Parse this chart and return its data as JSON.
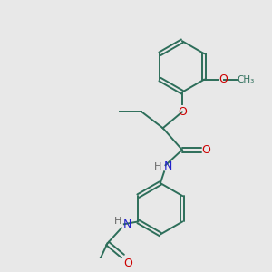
{
  "background_color": "#e8e8e8",
  "bond_color": "#2d6e5a",
  "atom_colors": {
    "O": "#cc0000",
    "N": "#2222cc",
    "H": "#666666",
    "C": "#2d6e5a"
  },
  "figsize": [
    3.0,
    3.0
  ],
  "dpi": 100
}
